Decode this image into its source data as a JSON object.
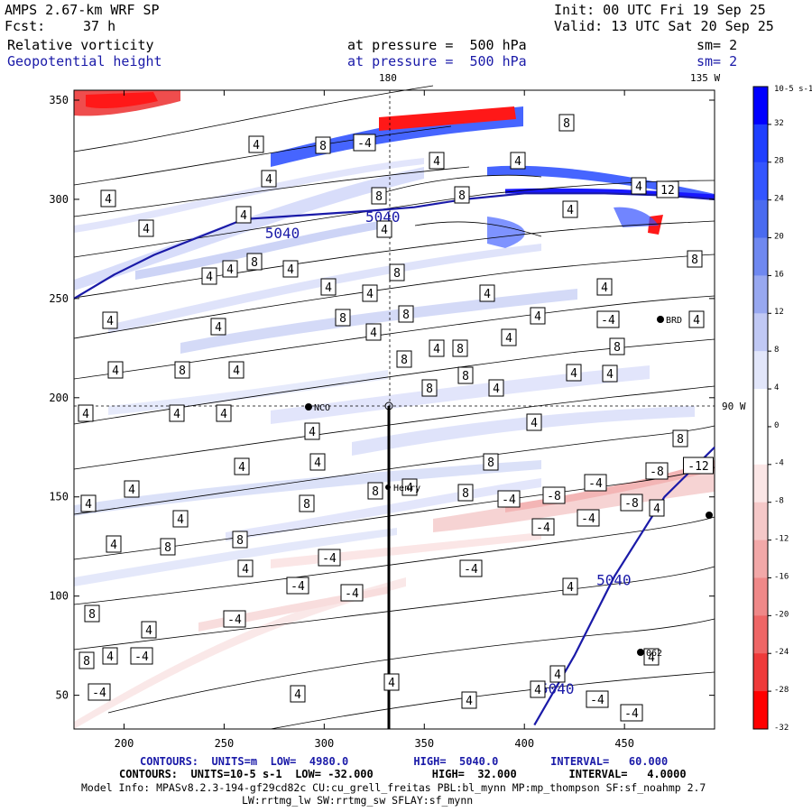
{
  "header": {
    "model": "AMPS 2.67-km WRF SP",
    "init": "Init: 00 UTC Fri 19 Sep 25",
    "fcst_label": "Fcst:",
    "fcst_value": "37 h",
    "valid": "Valid: 13 UTC Sat 20 Sep 25",
    "field1": "Relative vorticity",
    "field1_level": "at pressure =  500 hPa",
    "field1_sm": "sm= 2",
    "field2": "Geopotential height",
    "field2_level": "at pressure =  500 hPa",
    "field2_sm": "sm= 2"
  },
  "map_labels": {
    "lon_180": "180",
    "lon_135w": "135 W",
    "lon_90w": "90 W",
    "station_nco": "NCO",
    "station_henry": "Henry",
    "station_byrd": "BRD",
    "station_062": "062"
  },
  "colorbar": {
    "unit": "10-5 s-1",
    "ticks": [
      "32",
      "28",
      "24",
      "20",
      "16",
      "12",
      "8",
      "4",
      "0",
      "-4",
      "-8",
      "-12",
      "-16",
      "-20",
      "-24",
      "-28",
      "-32"
    ],
    "colors": [
      "#0000ff",
      "#1f3fff",
      "#3355ff",
      "#4a6bf0",
      "#6f88f0",
      "#98a8f0",
      "#c0c8f4",
      "#e2e6fa",
      "#ffffff",
      "#ffffff",
      "#fbe6e6",
      "#f5c8c8",
      "#f2a8a8",
      "#ef8888",
      "#ee6666",
      "#ee3a3a",
      "#ff0000"
    ]
  },
  "footer": {
    "contours1": "CONTOURS:  UNITS=m  LOW=  4980.0          HIGH=  5040.0        INTERVAL=   60.000",
    "contours2": "CONTOURS:  UNITS=10-5 s-1  LOW= -32.000         HIGH=  32.000        INTERVAL=   4.0000",
    "model_info": "Model Info: MPASv8.2.3-194-gf29cd82c CU:cu_grell_freitas PBL:bl_mynn MP:mp_thompson SF:sf_noahmp 2.7",
    "model_info2": "LW:rrtmg_lw SW:rrtmg_sw SFLAY:sf_mynn"
  },
  "chart_data": {
    "type": "contour map",
    "xlim": [
      175,
      495
    ],
    "ylim": [
      33,
      355
    ],
    "x_ticks": [
      200,
      250,
      300,
      350,
      400,
      450
    ],
    "y_ticks": [
      50,
      100,
      150,
      200,
      250,
      300,
      350
    ],
    "height_contours": [
      {
        "label": "5040",
        "points": [
          [
            175,
            250
          ],
          [
            195,
            262
          ],
          [
            215,
            272
          ],
          [
            235,
            280
          ],
          [
            260,
            290
          ],
          [
            290,
            292
          ],
          [
            320,
            294
          ],
          [
            345,
            296
          ],
          [
            370,
            300
          ],
          [
            400,
            303
          ],
          [
            440,
            303
          ],
          [
            470,
            302
          ],
          [
            495,
            300
          ]
        ]
      },
      {
        "label": "5040",
        "points": [
          [
            405,
            35
          ],
          [
            425,
            70
          ],
          [
            445,
            110
          ],
          [
            470,
            150
          ],
          [
            495,
            175
          ]
        ]
      }
    ],
    "vorticity_labels": [
      {
        "x": 95,
        "y": 458,
        "v": "4"
      },
      {
        "x": 98,
        "y": 558,
        "v": "4"
      },
      {
        "x": 120,
        "y": 220,
        "v": "4"
      },
      {
        "x": 122,
        "y": 355,
        "v": "4"
      },
      {
        "x": 128,
        "y": 410,
        "v": "4"
      },
      {
        "x": 146,
        "y": 542,
        "v": "4"
      },
      {
        "x": 126,
        "y": 603,
        "v": "4"
      },
      {
        "x": 102,
        "y": 680,
        "v": "8"
      },
      {
        "x": 96,
        "y": 732,
        "v": "8"
      },
      {
        "x": 122,
        "y": 727,
        "v": "4"
      },
      {
        "x": 110,
        "y": 767,
        "v": "-4"
      },
      {
        "x": 157,
        "y": 727,
        "v": "-4"
      },
      {
        "x": 162,
        "y": 253,
        "v": "4"
      },
      {
        "x": 202,
        "y": 410,
        "v": "8"
      },
      {
        "x": 196,
        "y": 458,
        "v": "4"
      },
      {
        "x": 200,
        "y": 575,
        "v": "4"
      },
      {
        "x": 186,
        "y": 606,
        "v": "8"
      },
      {
        "x": 165,
        "y": 698,
        "v": "4"
      },
      {
        "x": 270,
        "y": 238,
        "v": "4"
      },
      {
        "x": 284,
        "y": 160,
        "v": "4"
      },
      {
        "x": 298,
        "y": 198,
        "v": "4"
      },
      {
        "x": 232,
        "y": 306,
        "v": "4"
      },
      {
        "x": 255,
        "y": 298,
        "v": "4"
      },
      {
        "x": 282,
        "y": 290,
        "v": "8"
      },
      {
        "x": 242,
        "y": 362,
        "v": "4"
      },
      {
        "x": 262,
        "y": 410,
        "v": "4"
      },
      {
        "x": 248,
        "y": 458,
        "v": "4"
      },
      {
        "x": 268,
        "y": 517,
        "v": "4"
      },
      {
        "x": 266,
        "y": 598,
        "v": "8"
      },
      {
        "x": 272,
        "y": 630,
        "v": "4"
      },
      {
        "x": 260,
        "y": 686,
        "v": "-4"
      },
      {
        "x": 330,
        "y": 649,
        "v": "-4"
      },
      {
        "x": 390,
        "y": 657,
        "v": "-4"
      },
      {
        "x": 358,
        "y": 161,
        "v": "8"
      },
      {
        "x": 404,
        "y": 158,
        "v": "-4"
      },
      {
        "x": 420,
        "y": 217,
        "v": "8"
      },
      {
        "x": 426,
        "y": 254,
        "v": "4"
      },
      {
        "x": 322,
        "y": 298,
        "v": "4"
      },
      {
        "x": 364,
        "y": 318,
        "v": "4"
      },
      {
        "x": 410,
        "y": 325,
        "v": "4"
      },
      {
        "x": 380,
        "y": 352,
        "v": "8"
      },
      {
        "x": 414,
        "y": 368,
        "v": "4"
      },
      {
        "x": 440,
        "y": 302,
        "v": "8"
      },
      {
        "x": 450,
        "y": 348,
        "v": "8"
      },
      {
        "x": 448,
        "y": 398,
        "v": "8"
      },
      {
        "x": 484,
        "y": 386,
        "v": "4"
      },
      {
        "x": 510,
        "y": 386,
        "v": "8"
      },
      {
        "x": 476,
        "y": 430,
        "v": "8"
      },
      {
        "x": 346,
        "y": 478,
        "v": "4"
      },
      {
        "x": 352,
        "y": 512,
        "v": "4"
      },
      {
        "x": 340,
        "y": 558,
        "v": "8"
      },
      {
        "x": 416,
        "y": 544,
        "v": "8"
      },
      {
        "x": 454,
        "y": 540,
        "v": "4"
      },
      {
        "x": 516,
        "y": 546,
        "v": "8"
      },
      {
        "x": 365,
        "y": 618,
        "v": "-4"
      },
      {
        "x": 544,
        "y": 512,
        "v": "8"
      },
      {
        "x": 522,
        "y": 630,
        "v": "-4"
      },
      {
        "x": 564,
        "y": 553,
        "v": "-4"
      },
      {
        "x": 614,
        "y": 549,
        "v": "-8"
      },
      {
        "x": 602,
        "y": 584,
        "v": "-4"
      },
      {
        "x": 652,
        "y": 574,
        "v": "-4"
      },
      {
        "x": 660,
        "y": 535,
        "v": "-4"
      },
      {
        "x": 700,
        "y": 557,
        "v": "-8"
      },
      {
        "x": 728,
        "y": 522,
        "v": "-8"
      },
      {
        "x": 774,
        "y": 516,
        "v": "-12"
      },
      {
        "x": 728,
        "y": 563,
        "v": "4"
      },
      {
        "x": 632,
        "y": 650,
        "v": "4"
      },
      {
        "x": 564,
        "y": 374,
        "v": "4"
      },
      {
        "x": 596,
        "y": 350,
        "v": "4"
      },
      {
        "x": 636,
        "y": 413,
        "v": "4"
      },
      {
        "x": 676,
        "y": 414,
        "v": "4"
      },
      {
        "x": 684,
        "y": 384,
        "v": "8"
      },
      {
        "x": 674,
        "y": 354,
        "v": "-4"
      },
      {
        "x": 670,
        "y": 318,
        "v": "4"
      },
      {
        "x": 592,
        "y": 468,
        "v": "4"
      },
      {
        "x": 754,
        "y": 486,
        "v": "8"
      },
      {
        "x": 772,
        "y": 354,
        "v": "4"
      },
      {
        "x": 770,
        "y": 287,
        "v": "8"
      },
      {
        "x": 540,
        "y": 325,
        "v": "4"
      },
      {
        "x": 516,
        "y": 416,
        "v": "8"
      },
      {
        "x": 550,
        "y": 430,
        "v": "4"
      },
      {
        "x": 434,
        "y": 756,
        "v": "4"
      },
      {
        "x": 330,
        "y": 769,
        "v": "4"
      },
      {
        "x": 520,
        "y": 776,
        "v": "4"
      },
      {
        "x": 618,
        "y": 747,
        "v": "4"
      },
      {
        "x": 596,
        "y": 764,
        "v": "4"
      },
      {
        "x": 662,
        "y": 775,
        "v": "-4"
      },
      {
        "x": 700,
        "y": 790,
        "v": "-4"
      },
      {
        "x": 722,
        "y": 728,
        "v": "4"
      },
      {
        "x": 484,
        "y": 178,
        "v": "4"
      },
      {
        "x": 512,
        "y": 216,
        "v": "8"
      },
      {
        "x": 632,
        "y": 232,
        "v": "4"
      },
      {
        "x": 574,
        "y": 178,
        "v": "4"
      },
      {
        "x": 708,
        "y": 206,
        "v": "4"
      },
      {
        "x": 740,
        "y": 210,
        "v": "12"
      },
      {
        "x": 628,
        "y": 136,
        "v": "8"
      }
    ]
  }
}
